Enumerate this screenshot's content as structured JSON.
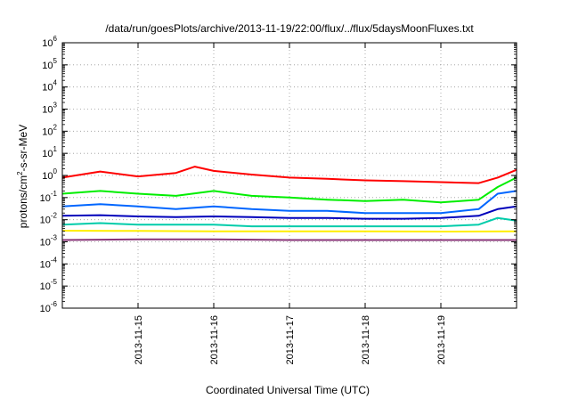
{
  "chart_data": {
    "type": "line",
    "title": "/data/run/goesPlots/archive/2013-11-19/22:00/flux/../flux/5daysMoonFluxes.txt",
    "xlabel": "Coordinated Universal Time (UTC)",
    "ylabel": {
      "base": "protons/cm",
      "sup": "2",
      "rest": "-s-sr-MeV"
    },
    "yscale": "log",
    "ylim": [
      1e-06,
      1000000
    ],
    "y_ticks": [
      {
        "base": "10",
        "exp": "-6"
      },
      {
        "base": "10",
        "exp": "-5"
      },
      {
        "base": "10",
        "exp": "-4"
      },
      {
        "base": "10",
        "exp": "-3"
      },
      {
        "base": "10",
        "exp": "-2"
      },
      {
        "base": "10",
        "exp": "-1"
      },
      {
        "base": "10",
        "exp": "0"
      },
      {
        "base": "10",
        "exp": "1"
      },
      {
        "base": "10",
        "exp": "2"
      },
      {
        "base": "10",
        "exp": "3"
      },
      {
        "base": "10",
        "exp": "4"
      },
      {
        "base": "10",
        "exp": "5"
      },
      {
        "base": "10",
        "exp": "6"
      }
    ],
    "xlim": [
      "2013-11-14 00:00",
      "2013-11-20 00:00"
    ],
    "x_ticks": [
      "2013-11-15",
      "2013-11-16",
      "2013-11-17",
      "2013-11-18",
      "2013-11-19"
    ],
    "grid": true,
    "series": [
      {
        "color": "#ff0000",
        "x": [
          "2013-11-14 00:00",
          "2013-11-14 12:00",
          "2013-11-15 00:00",
          "2013-11-15 12:00",
          "2013-11-15 18:00",
          "2013-11-16 00:00",
          "2013-11-16 12:00",
          "2013-11-17 00:00",
          "2013-11-17 12:00",
          "2013-11-18 00:00",
          "2013-11-18 12:00",
          "2013-11-19 00:00",
          "2013-11-19 12:00",
          "2013-11-19 18:00",
          "2013-11-20 00:00"
        ],
        "values": [
          0.8,
          1.5,
          0.9,
          1.3,
          2.5,
          1.6,
          1.1,
          0.8,
          0.7,
          0.6,
          0.55,
          0.5,
          0.45,
          0.8,
          1.8
        ]
      },
      {
        "color": "#00ee00",
        "x": [
          "2013-11-14 00:00",
          "2013-11-14 12:00",
          "2013-11-15 00:00",
          "2013-11-15 12:00",
          "2013-11-16 00:00",
          "2013-11-16 12:00",
          "2013-11-17 00:00",
          "2013-11-17 12:00",
          "2013-11-18 00:00",
          "2013-11-18 12:00",
          "2013-11-19 00:00",
          "2013-11-19 12:00",
          "2013-11-19 18:00",
          "2013-11-20 00:00"
        ],
        "values": [
          0.15,
          0.2,
          0.15,
          0.12,
          0.2,
          0.12,
          0.1,
          0.08,
          0.07,
          0.08,
          0.06,
          0.08,
          0.3,
          0.8
        ]
      },
      {
        "color": "#0066ff",
        "x": [
          "2013-11-14 00:00",
          "2013-11-14 12:00",
          "2013-11-15 00:00",
          "2013-11-15 12:00",
          "2013-11-16 00:00",
          "2013-11-16 12:00",
          "2013-11-17 00:00",
          "2013-11-17 12:00",
          "2013-11-18 00:00",
          "2013-11-18 12:00",
          "2013-11-19 00:00",
          "2013-11-19 12:00",
          "2013-11-19 18:00",
          "2013-11-20 00:00"
        ],
        "values": [
          0.04,
          0.05,
          0.04,
          0.03,
          0.04,
          0.03,
          0.025,
          0.025,
          0.02,
          0.02,
          0.02,
          0.03,
          0.15,
          0.2
        ]
      },
      {
        "color": "#0000bb",
        "x": [
          "2013-11-14 00:00",
          "2013-11-14 12:00",
          "2013-11-15 00:00",
          "2013-11-15 12:00",
          "2013-11-16 00:00",
          "2013-11-16 12:00",
          "2013-11-17 00:00",
          "2013-11-17 12:00",
          "2013-11-18 00:00",
          "2013-11-18 12:00",
          "2013-11-19 00:00",
          "2013-11-19 12:00",
          "2013-11-19 18:00",
          "2013-11-20 00:00"
        ],
        "values": [
          0.015,
          0.016,
          0.014,
          0.013,
          0.014,
          0.013,
          0.012,
          0.012,
          0.011,
          0.011,
          0.012,
          0.015,
          0.03,
          0.04
        ]
      },
      {
        "color": "#00ccaa",
        "x": [
          "2013-11-14 00:00",
          "2013-11-14 12:00",
          "2013-11-15 00:00",
          "2013-11-15 12:00",
          "2013-11-16 00:00",
          "2013-11-16 12:00",
          "2013-11-17 00:00",
          "2013-11-17 12:00",
          "2013-11-18 00:00",
          "2013-11-18 12:00",
          "2013-11-19 00:00",
          "2013-11-19 12:00",
          "2013-11-19 18:00",
          "2013-11-20 00:00"
        ],
        "values": [
          0.006,
          0.007,
          0.006,
          0.006,
          0.006,
          0.005,
          0.005,
          0.005,
          0.005,
          0.005,
          0.005,
          0.006,
          0.012,
          0.009
        ]
      },
      {
        "color": "#ffee00",
        "x": [
          "2013-11-14 00:00",
          "2013-11-15 00:00",
          "2013-11-16 00:00",
          "2013-11-17 00:00",
          "2013-11-18 00:00",
          "2013-11-19 00:00",
          "2013-11-20 00:00"
        ],
        "values": [
          0.0032,
          0.0031,
          0.003,
          0.003,
          0.003,
          0.0029,
          0.003
        ]
      },
      {
        "color": "#883377",
        "x": [
          "2013-11-14 00:00",
          "2013-11-15 00:00",
          "2013-11-16 00:00",
          "2013-11-17 00:00",
          "2013-11-18 00:00",
          "2013-11-19 00:00",
          "2013-11-20 00:00"
        ],
        "values": [
          0.0012,
          0.0013,
          0.0013,
          0.0012,
          0.0012,
          0.0012,
          0.0012
        ]
      }
    ]
  }
}
